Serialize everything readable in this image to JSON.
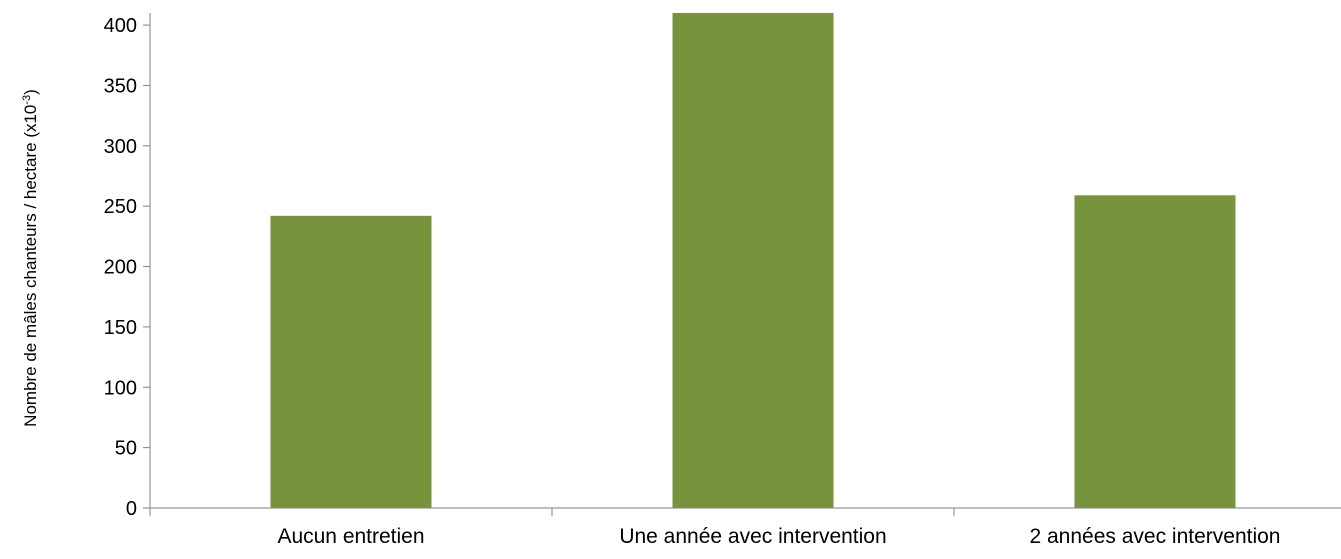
{
  "chart_data": {
    "type": "bar",
    "categories": [
      "Aucun entretien",
      "Une année avec intervention",
      "2 années avec intervention"
    ],
    "values": [
      242,
      410,
      259
    ],
    "ylabel": "Nombre de mâles chanteurs / hectare (x10",
    "ylabel_sup": "-3",
    "ylabel_close": ")",
    "xlabel": "",
    "ylim": [
      0,
      410
    ],
    "yticks": [
      0,
      50,
      100,
      150,
      200,
      250,
      300,
      350,
      400
    ],
    "grid": false,
    "legend": "none",
    "bar_color": "#77933C"
  }
}
